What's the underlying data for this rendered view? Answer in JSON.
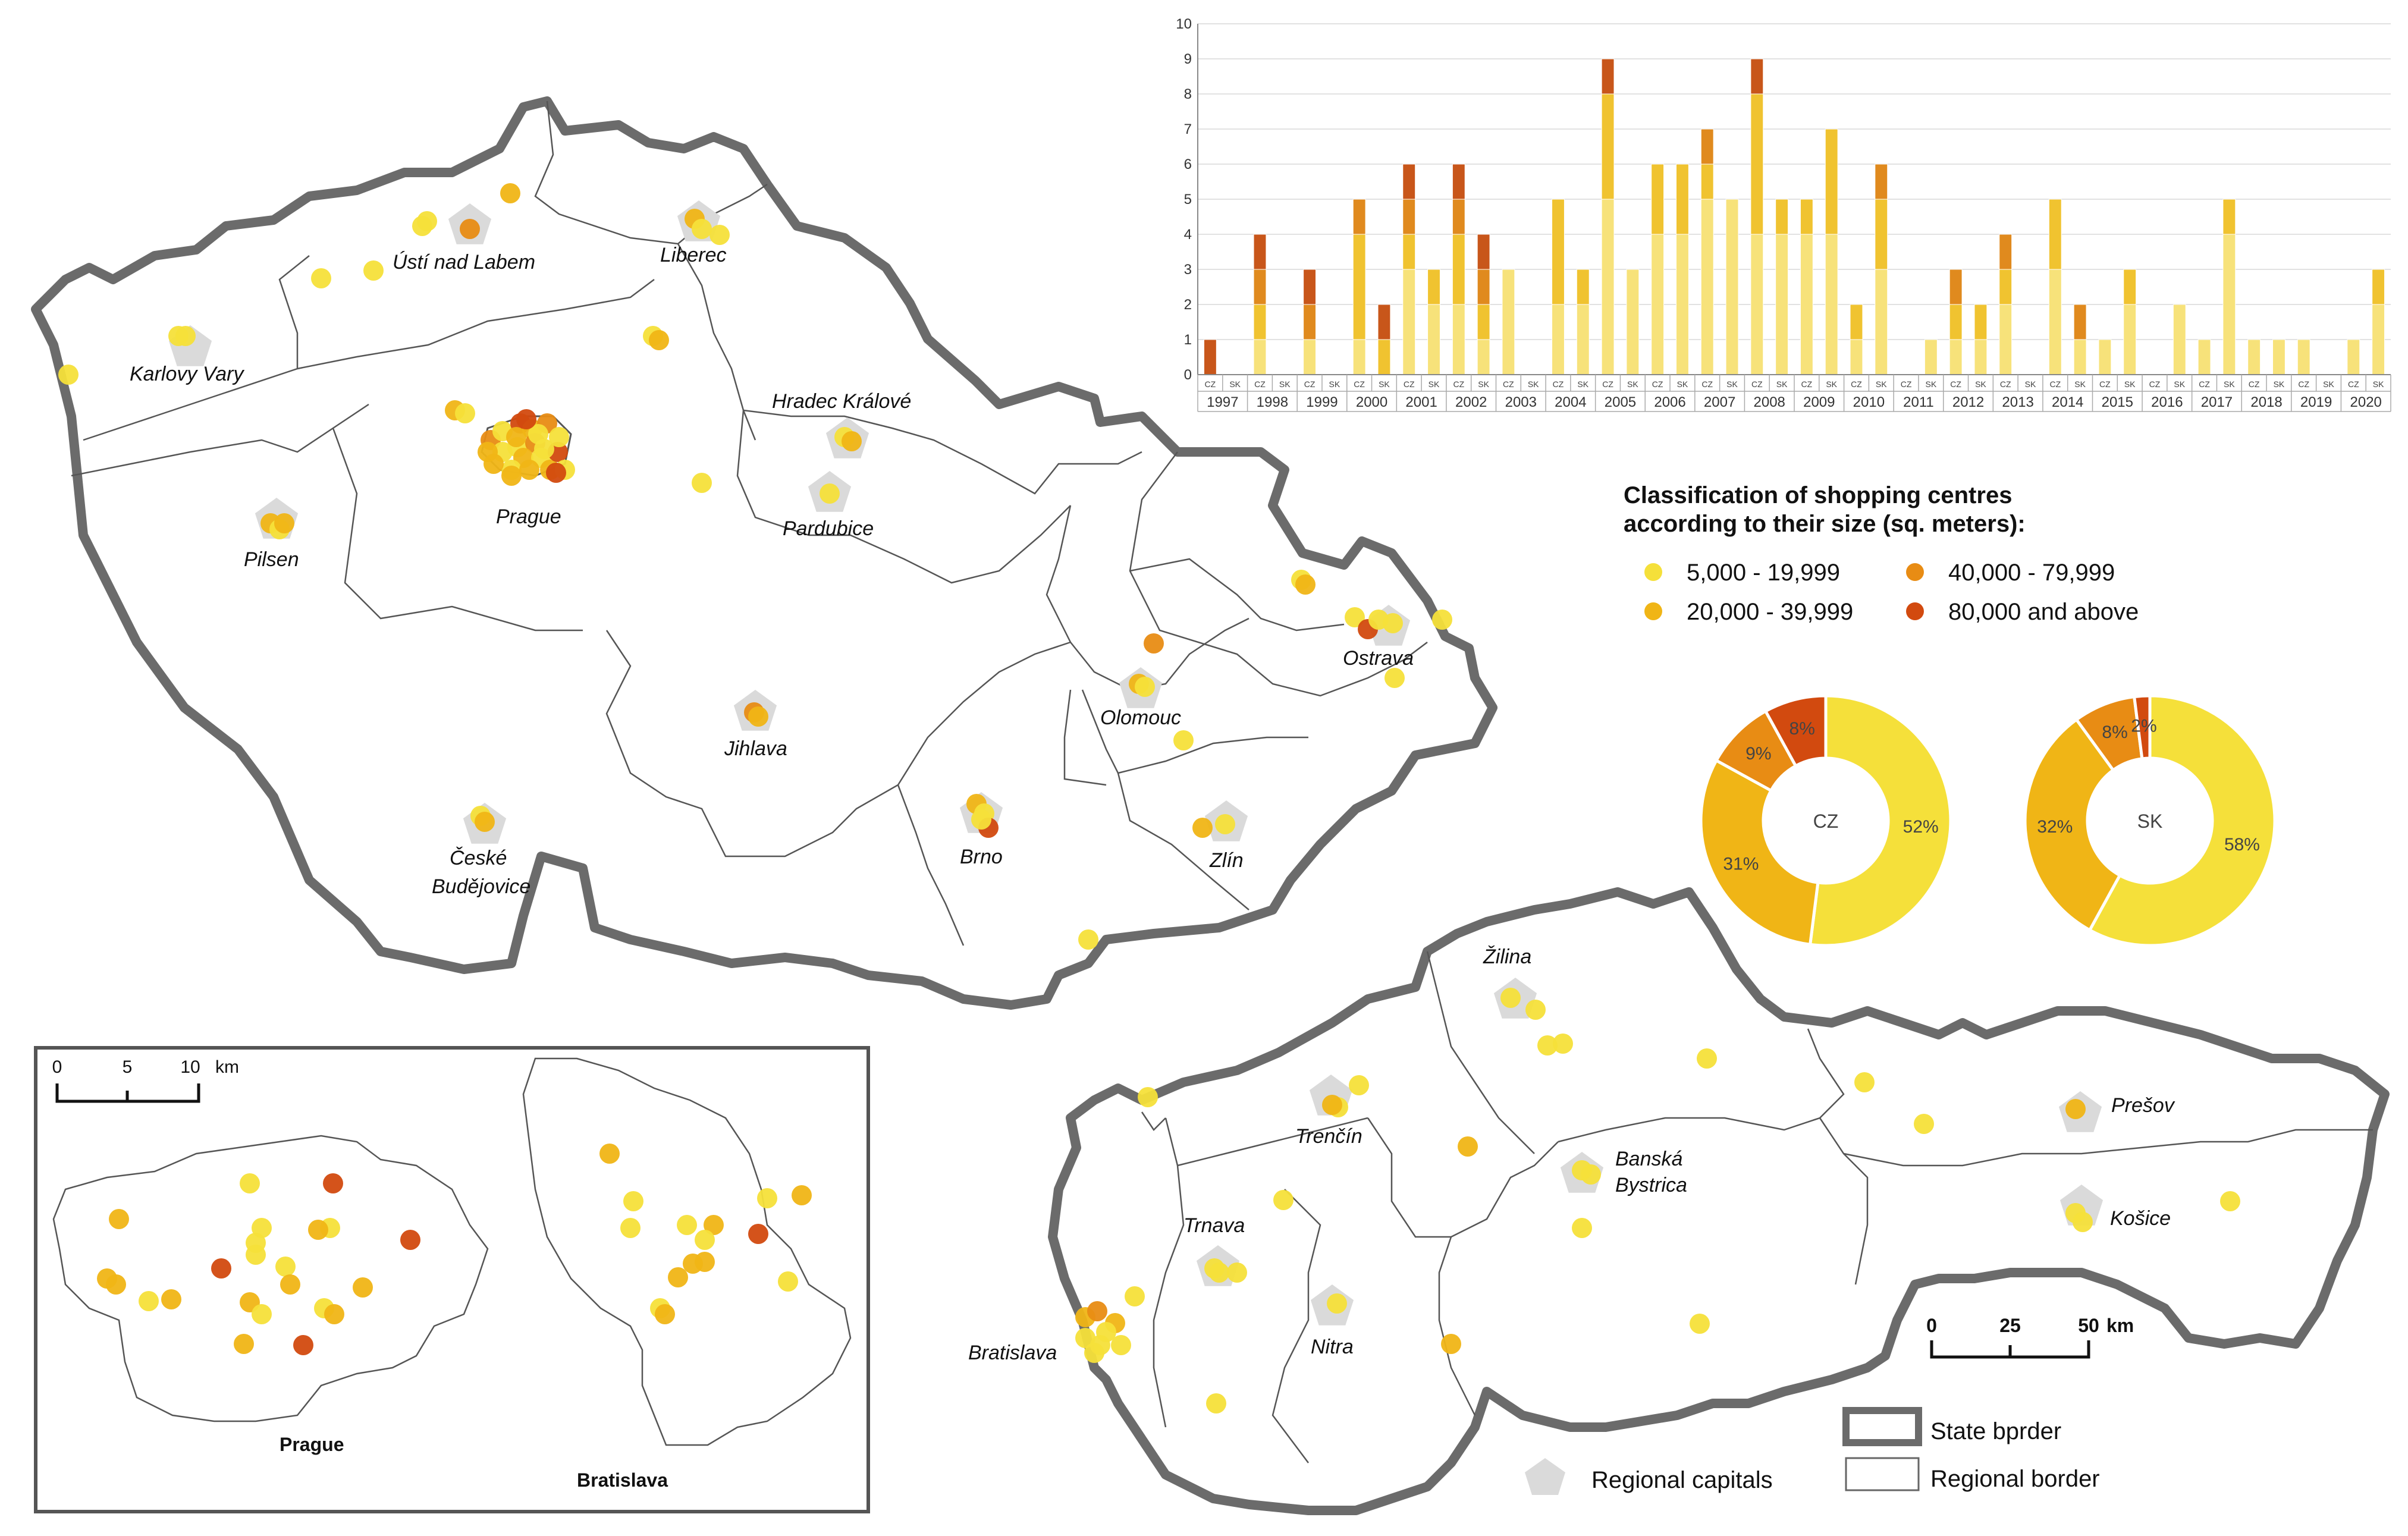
{
  "colors": {
    "size_5k": "#f5e03a",
    "size_20k": "#f0b516",
    "size_40k": "#e88c14",
    "size_80k": "#d24a0f",
    "bar_light": "#f7e27a",
    "bar_mid": "#f0c330",
    "bar_dark": "#e08a1e",
    "bar_darkest": "#c8561a",
    "border": "#6b6b6b",
    "capital": "#dadada"
  },
  "map": {
    "cz_cities": [
      "Ústí nad Labem",
      "Liberec",
      "Karlovy Vary",
      "Hradec Králové",
      "Prague",
      "Pilsen",
      "Pardubice",
      "Ostrava",
      "Olomouc",
      "Jihlava",
      "Brno",
      "Zlín",
      "České",
      "Budějovice"
    ],
    "sk_cities": [
      "Žilina",
      "Trenčín",
      "Prešov",
      "Banská",
      "Bystrica",
      "Trnava",
      "Košice",
      "Nitra",
      "Bratislava"
    ],
    "scale_main": {
      "ticks": [
        "0",
        "25",
        "50"
      ],
      "unit": "km"
    },
    "legend": {
      "regional_capitals": "Regional capitals",
      "state_border": "State bprder",
      "regional_border": "Regional border"
    }
  },
  "inset": {
    "scale": {
      "ticks": [
        "0",
        "5",
        "10"
      ],
      "unit": "km"
    },
    "labels": [
      "Prague",
      "Bratislava"
    ]
  },
  "size_legend": {
    "title_line1": "Classification of shopping centres",
    "title_line2": "according to their size (sq. meters):",
    "items": [
      "5,000 - 19,999",
      "40,000 - 79,999",
      "20,000 - 39,999",
      "80,000 and above"
    ]
  },
  "chart_data": [
    {
      "type": "bar",
      "stacked": true,
      "years": [
        "1997",
        "1998",
        "1999",
        "2000",
        "2001",
        "2002",
        "2003",
        "2004",
        "2005",
        "2006",
        "2007",
        "2008",
        "2009",
        "2010",
        "2011",
        "2012",
        "2013",
        "2014",
        "2015",
        "2016",
        "2017",
        "2018",
        "2019",
        "2020"
      ],
      "countries": [
        "CZ",
        "SK"
      ],
      "ylim": [
        0,
        10
      ],
      "yticks": [
        "0",
        "1",
        "2",
        "3",
        "4",
        "5",
        "6",
        "7",
        "8",
        "9",
        "10"
      ],
      "grid": true,
      "series": [
        {
          "name": "5,000 - 19,999",
          "values": [
            0,
            0,
            1,
            0,
            1,
            0,
            1,
            0,
            3,
            2,
            2,
            1,
            3,
            0,
            2,
            2,
            5,
            3,
            4,
            4,
            5,
            5,
            4,
            4,
            4,
            4,
            1,
            3,
            0,
            1,
            1,
            1,
            2,
            0,
            3,
            1,
            1,
            2,
            0,
            2,
            1,
            4,
            1,
            1,
            1,
            0,
            1,
            2
          ]
        },
        {
          "name": "20,000 - 39,999",
          "values": [
            0,
            0,
            1,
            0,
            0,
            0,
            3,
            1,
            1,
            1,
            2,
            1,
            0,
            0,
            3,
            1,
            3,
            0,
            2,
            2,
            1,
            0,
            4,
            1,
            1,
            3,
            1,
            2,
            0,
            0,
            1,
            1,
            1,
            0,
            2,
            0,
            0,
            1,
            0,
            0,
            0,
            1,
            0,
            0,
            0,
            0,
            0,
            1
          ]
        },
        {
          "name": "40,000 - 79,999",
          "values": [
            0,
            0,
            1,
            0,
            1,
            0,
            1,
            0,
            1,
            0,
            1,
            1,
            0,
            0,
            0,
            0,
            0,
            0,
            0,
            0,
            1,
            0,
            0,
            0,
            0,
            0,
            0,
            1,
            0,
            0,
            1,
            0,
            1,
            0,
            0,
            1,
            0,
            0,
            0,
            0,
            0,
            0,
            0,
            0,
            0,
            0,
            0,
            0
          ]
        },
        {
          "name": "80,000 and above",
          "values": [
            1,
            0,
            1,
            0,
            1,
            0,
            0,
            1,
            1,
            0,
            1,
            1,
            0,
            0,
            0,
            0,
            1,
            0,
            0,
            0,
            0,
            0,
            1,
            0,
            0,
            0,
            0,
            0,
            0,
            0,
            0,
            0,
            0,
            0,
            0,
            0,
            0,
            0,
            0,
            0,
            0,
            0,
            0,
            0,
            0,
            0,
            0,
            0
          ]
        }
      ]
    },
    {
      "type": "pie",
      "center_label": "CZ",
      "labels": [
        "5,000 - 19,999",
        "20,000 - 39,999",
        "40,000 - 79,999",
        "80,000 and above"
      ],
      "values": [
        52,
        31,
        9,
        8
      ],
      "value_labels": [
        "52%",
        "31%",
        "9%",
        "8%"
      ]
    },
    {
      "type": "pie",
      "center_label": "SK",
      "labels": [
        "5,000 - 19,999",
        "20,000 - 39,999",
        "40,000 - 79,999",
        "80,000 and above"
      ],
      "values": [
        58,
        32,
        8,
        2
      ],
      "value_labels": [
        "58%",
        "32%",
        "8%",
        "2%"
      ]
    }
  ]
}
